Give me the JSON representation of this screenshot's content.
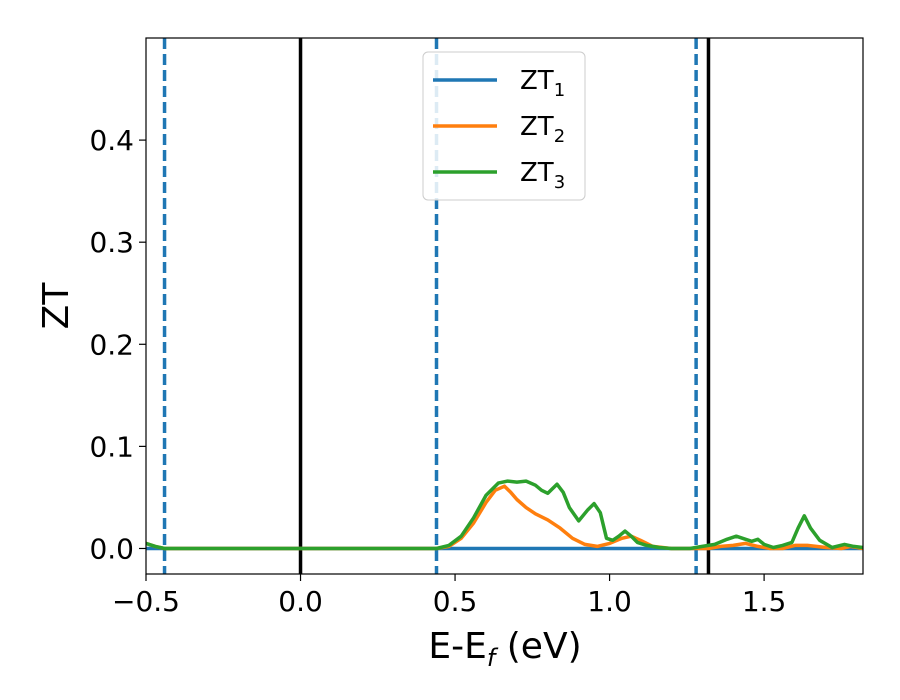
{
  "chart_data": {
    "type": "line",
    "xlabel": {
      "main": "E-E",
      "sub": "f",
      "unit": " (eV)"
    },
    "ylabel": "ZT",
    "xlim": [
      -0.5,
      1.82
    ],
    "ylim": [
      -0.025,
      0.5
    ],
    "x_ticks": [
      -0.5,
      0.0,
      0.5,
      1.0,
      1.5
    ],
    "x_tick_labels": [
      "−0.5",
      "0.0",
      "0.5",
      "1.0",
      "1.5"
    ],
    "y_ticks": [
      0.0,
      0.1,
      0.2,
      0.3,
      0.4
    ],
    "y_tick_labels": [
      "0.0",
      "0.1",
      "0.2",
      "0.3",
      "0.4"
    ],
    "grid": false,
    "legend_position": "top-center",
    "series": [
      {
        "name": "ZT",
        "sub": "1",
        "color": "#1f77b4",
        "x": [
          -0.5,
          1.82
        ],
        "y": [
          0.0,
          0.0
        ]
      },
      {
        "name": "ZT",
        "sub": "2",
        "color": "#ff7f0e",
        "x": [
          -0.5,
          -0.47,
          -0.44,
          0.0,
          0.4,
          0.44,
          0.48,
          0.52,
          0.56,
          0.6,
          0.63,
          0.66,
          0.68,
          0.7,
          0.73,
          0.76,
          0.8,
          0.84,
          0.88,
          0.92,
          0.96,
          1.0,
          1.04,
          1.07,
          1.1,
          1.14,
          1.2,
          1.28,
          1.32,
          1.36,
          1.4,
          1.44,
          1.48,
          1.52,
          1.56,
          1.6,
          1.64,
          1.7,
          1.75,
          1.78,
          1.82
        ],
        "y": [
          0.005,
          0.002,
          0.0,
          0.0,
          0.0,
          0.0,
          0.002,
          0.01,
          0.025,
          0.045,
          0.057,
          0.061,
          0.055,
          0.048,
          0.04,
          0.034,
          0.028,
          0.02,
          0.01,
          0.004,
          0.002,
          0.005,
          0.01,
          0.012,
          0.008,
          0.002,
          0.0,
          0.0,
          0.0,
          0.002,
          0.003,
          0.005,
          0.002,
          0.0,
          0.0,
          0.003,
          0.003,
          0.001,
          0.0,
          0.002,
          0.0
        ]
      },
      {
        "name": "ZT",
        "sub": "3",
        "color": "#2ca02c",
        "x": [
          -0.5,
          -0.47,
          -0.44,
          0.0,
          0.4,
          0.44,
          0.48,
          0.52,
          0.56,
          0.6,
          0.64,
          0.67,
          0.7,
          0.73,
          0.76,
          0.78,
          0.8,
          0.83,
          0.85,
          0.87,
          0.9,
          0.93,
          0.95,
          0.97,
          0.99,
          1.01,
          1.03,
          1.05,
          1.07,
          1.09,
          1.12,
          1.16,
          1.2,
          1.26,
          1.3,
          1.34,
          1.38,
          1.41,
          1.44,
          1.46,
          1.48,
          1.5,
          1.53,
          1.56,
          1.59,
          1.61,
          1.63,
          1.65,
          1.68,
          1.72,
          1.76,
          1.79,
          1.82
        ],
        "y": [
          0.005,
          0.002,
          0.0,
          0.0,
          0.0,
          0.0,
          0.003,
          0.012,
          0.03,
          0.052,
          0.064,
          0.066,
          0.065,
          0.066,
          0.062,
          0.057,
          0.054,
          0.063,
          0.055,
          0.04,
          0.027,
          0.038,
          0.044,
          0.035,
          0.01,
          0.008,
          0.012,
          0.017,
          0.012,
          0.006,
          0.003,
          0.001,
          0.0,
          0.0,
          0.002,
          0.004,
          0.009,
          0.012,
          0.009,
          0.007,
          0.009,
          0.004,
          0.001,
          0.003,
          0.006,
          0.02,
          0.032,
          0.02,
          0.008,
          0.001,
          0.004,
          0.002,
          0.001
        ]
      }
    ],
    "vlines": [
      {
        "x": -0.44,
        "style": "dashed",
        "color": "#1f77b4"
      },
      {
        "x": 0.0,
        "style": "solid",
        "color": "#000000"
      },
      {
        "x": 0.44,
        "style": "dashed",
        "color": "#1f77b4"
      },
      {
        "x": 1.28,
        "style": "dashed",
        "color": "#1f77b4"
      },
      {
        "x": 1.32,
        "style": "solid",
        "color": "#000000"
      }
    ]
  }
}
